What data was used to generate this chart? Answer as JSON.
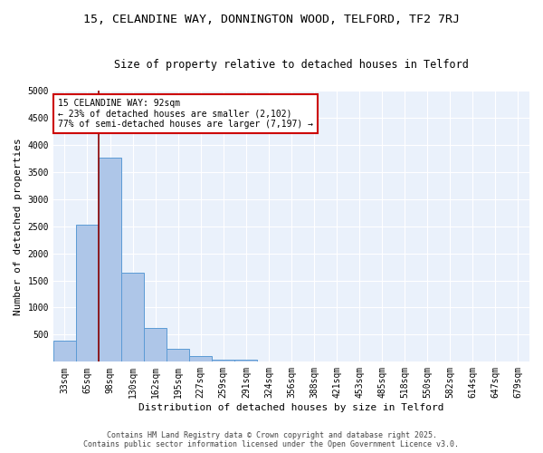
{
  "title_line1": "15, CELANDINE WAY, DONNINGTON WOOD, TELFORD, TF2 7RJ",
  "title_line2": "Size of property relative to detached houses in Telford",
  "xlabel": "Distribution of detached houses by size in Telford",
  "ylabel": "Number of detached properties",
  "categories": [
    "33sqm",
    "65sqm",
    "98sqm",
    "130sqm",
    "162sqm",
    "195sqm",
    "227sqm",
    "259sqm",
    "291sqm",
    "324sqm",
    "356sqm",
    "388sqm",
    "421sqm",
    "453sqm",
    "485sqm",
    "518sqm",
    "550sqm",
    "582sqm",
    "614sqm",
    "647sqm",
    "679sqm"
  ],
  "values": [
    390,
    2520,
    3760,
    1650,
    620,
    235,
    100,
    40,
    40,
    5,
    0,
    0,
    0,
    0,
    0,
    0,
    0,
    0,
    0,
    0,
    0
  ],
  "bar_color": "#aec6e8",
  "bar_edge_color": "#5b9bd5",
  "ylim": [
    0,
    5000
  ],
  "yticks": [
    0,
    500,
    1000,
    1500,
    2000,
    2500,
    3000,
    3500,
    4000,
    4500,
    5000
  ],
  "property_bar_index": 2,
  "vline_color": "#8b0000",
  "annotation_text": "15 CELANDINE WAY: 92sqm\n← 23% of detached houses are smaller (2,102)\n77% of semi-detached houses are larger (7,197) →",
  "annotation_box_color": "#ffffff",
  "annotation_box_edge_color": "#cc0000",
  "footer_line1": "Contains HM Land Registry data © Crown copyright and database right 2025.",
  "footer_line2": "Contains public sector information licensed under the Open Government Licence v3.0.",
  "background_color": "#eaf1fb",
  "grid_color": "#ffffff",
  "title_fontsize": 9.5,
  "subtitle_fontsize": 8.5,
  "axis_label_fontsize": 8,
  "tick_fontsize": 7,
  "annotation_fontsize": 7,
  "footer_fontsize": 6
}
